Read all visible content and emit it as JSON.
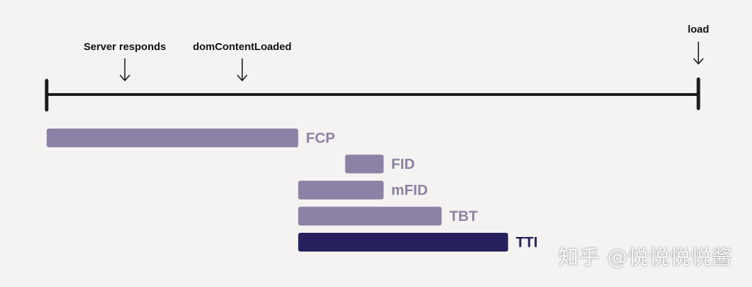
{
  "chart_data": {
    "type": "timeline",
    "title": "",
    "timeline": {
      "start": 0,
      "end": 100
    },
    "markers": [
      {
        "label": "Server responds",
        "t": 12.0
      },
      {
        "label": "domContentLoaded",
        "t": 30.0
      },
      {
        "label": "load",
        "t": 100.0
      }
    ],
    "bars": [
      {
        "label": "FCP",
        "start": 0.0,
        "end": 38.6
      },
      {
        "label": "FID",
        "start": 45.8,
        "end": 51.7
      },
      {
        "label": "mFID",
        "start": 38.6,
        "end": 51.7
      },
      {
        "label": "TBT",
        "start": 38.6,
        "end": 60.6
      },
      {
        "label": "TTI",
        "start": 38.6,
        "end": 70.8,
        "highlight": true
      }
    ]
  },
  "colors": {
    "background": "#f4f3f1",
    "axis": "#1a1a1a",
    "bar": "#8d82a5",
    "bar_label": "#8d82a5",
    "highlight_bar": "#26205c",
    "highlight_label": "#26205c"
  },
  "watermark": "知乎 @悦悦悦悦酱"
}
